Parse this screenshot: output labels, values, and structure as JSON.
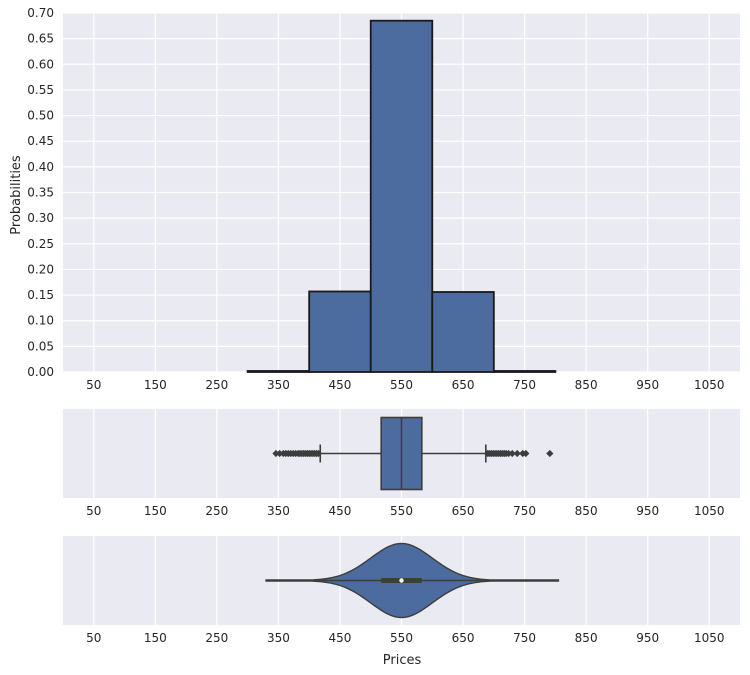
{
  "chart_data": [
    {
      "type": "bar",
      "subtype": "histogram",
      "ylabel": "Probabilities",
      "xlabel": "",
      "bins": [
        [
          300,
          400
        ],
        [
          400,
          500
        ],
        [
          500,
          600
        ],
        [
          600,
          700
        ],
        [
          700,
          800
        ]
      ],
      "values": [
        0.002,
        0.157,
        0.685,
        0.156,
        0.002
      ],
      "xlim": [
        0,
        1100
      ],
      "ylim": [
        0,
        0.7
      ],
      "xticks": [
        50,
        150,
        250,
        350,
        450,
        550,
        650,
        750,
        850,
        950,
        1050
      ],
      "yticks": [
        0.0,
        0.05,
        0.1,
        0.15,
        0.2,
        0.25,
        0.3,
        0.35,
        0.4,
        0.45,
        0.5,
        0.55,
        0.6,
        0.65,
        0.7
      ],
      "grid": true,
      "colors": {
        "fill": "#4c6b9e",
        "edge": "#1a1a1a",
        "background": "#eaeaf2"
      }
    },
    {
      "type": "boxplot",
      "xlabel": "",
      "q1": 517,
      "median": 550,
      "q3": 583,
      "whisker_low": 418,
      "whisker_high": 687,
      "outliers_low": [
        346,
        352,
        358,
        362,
        366,
        370,
        374,
        378,
        382,
        385,
        388,
        391,
        394,
        397,
        400,
        403,
        406,
        409,
        412,
        415
      ],
      "outliers_high": [
        690,
        693,
        696,
        699,
        702,
        705,
        708,
        711,
        714,
        717,
        720,
        724,
        730,
        738,
        747,
        752,
        791
      ],
      "xlim": [
        0,
        1100
      ],
      "xticks": [
        50,
        150,
        250,
        350,
        450,
        550,
        650,
        750,
        850,
        950,
        1050
      ],
      "grid": true,
      "colors": {
        "fill": "#4c6b9e",
        "edge": "#3d3d3d",
        "background": "#eaeaf2"
      }
    },
    {
      "type": "violin",
      "xlabel": "Prices",
      "min": 330,
      "max": 805,
      "q1": 517,
      "median": 550,
      "q3": 583,
      "density_center": 550,
      "density_sd": 50,
      "xlim": [
        0,
        1100
      ],
      "xticks": [
        50,
        150,
        250,
        350,
        450,
        550,
        650,
        750,
        850,
        950,
        1050
      ],
      "grid": true,
      "colors": {
        "fill": "#4c6b9e",
        "edge": "#3d3d3d",
        "background": "#eaeaf2"
      }
    }
  ]
}
